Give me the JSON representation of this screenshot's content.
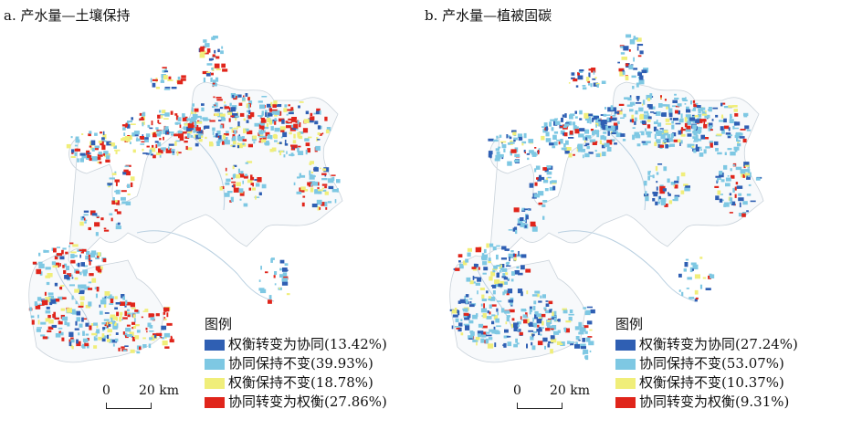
{
  "colors": {
    "trade_to_syn": "#2f5fb3",
    "syn_keep": "#7ec8e3",
    "trade_keep": "#f0ee7a",
    "syn_to_trade": "#e0251b"
  },
  "panels": [
    {
      "title": "a. 产水量—土壤保持",
      "legend": {
        "title": "图例",
        "items": [
          {
            "label": "权衡转变为协同(13.42%)",
            "color": "#2f5fb3",
            "percent": 13.42
          },
          {
            "label": "协同保持不变(39.93%)",
            "color": "#7ec8e3",
            "percent": 39.93
          },
          {
            "label": "权衡保持不变(18.78%)",
            "color": "#f0ee7a",
            "percent": 18.78
          },
          {
            "label": "协同转变为权衡(27.86%)",
            "color": "#e0251b",
            "percent": 27.86
          }
        ]
      },
      "scale": {
        "zero": "0",
        "distance": "20 km"
      }
    },
    {
      "title": "b. 产水量—植被固碳",
      "legend": {
        "title": "图例",
        "items": [
          {
            "label": "权衡转变为协同(27.24%)",
            "color": "#2f5fb3",
            "percent": 27.24
          },
          {
            "label": "协同保持不变(53.07%)",
            "color": "#7ec8e3",
            "percent": 53.07
          },
          {
            "label": "权衡保持不变(10.37%)",
            "color": "#f0ee7a",
            "percent": 10.37
          },
          {
            "label": "协同转变为权衡(9.31%)",
            "color": "#e0251b",
            "percent": 9.31
          }
        ]
      },
      "scale": {
        "zero": "0",
        "distance": "20 km"
      }
    }
  ]
}
